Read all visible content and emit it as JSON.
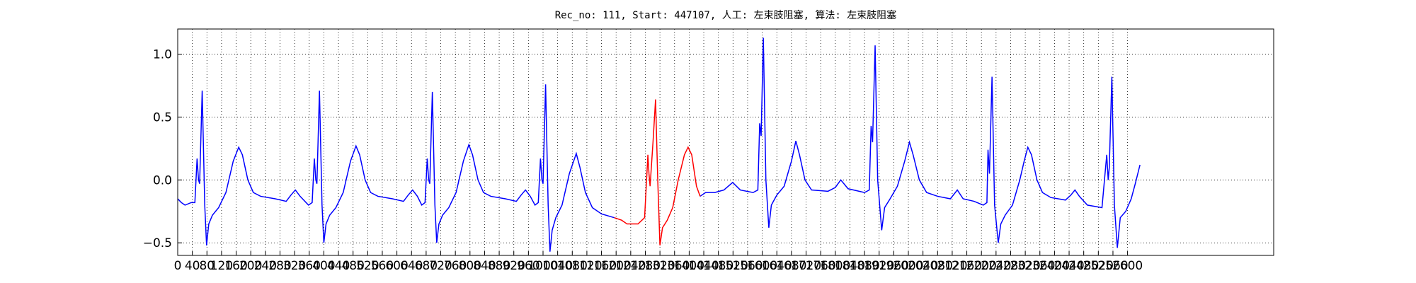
{
  "chart_data": {
    "type": "line",
    "title": "Rec_no: 111, Start: 447107, 人工: 左束肢阻塞, 算法: 左束肢阻塞",
    "xlim": [
      0,
      3000
    ],
    "xticks": [
      0,
      40,
      80,
      120,
      160,
      200,
      240,
      280,
      320,
      360,
      400,
      440,
      480,
      520,
      560,
      600,
      640,
      680,
      720,
      760,
      800,
      840,
      880,
      920,
      960,
      1000,
      1040,
      1080,
      1120,
      1160,
      1200,
      1240,
      1280,
      1320,
      1360,
      1400,
      1440,
      1480,
      1520,
      1560,
      1600,
      1640,
      1680,
      1720,
      1760,
      1800,
      1840,
      1880,
      1920,
      1960,
      2000,
      2040,
      2080,
      2120,
      2160,
      2200,
      2240,
      2280,
      2320,
      2360,
      2400,
      2440,
      2480,
      2520,
      2560,
      2600
    ],
    "ylim": [
      -0.6,
      1.2
    ],
    "yticks": [
      {
        "value": -0.5,
        "label": "−0.5"
      },
      {
        "value": 0,
        "label": "0.0"
      },
      0.5,
      {
        "value": 1,
        "label": "1.0"
      }
    ],
    "grid": true,
    "series": [
      {
        "color": "#0000ff",
        "x": [
          0,
          10,
          20,
          37,
          47,
          53,
          57,
          60,
          67,
          74,
          79,
          85,
          95,
          112,
          132,
          152,
          167,
          177,
          192,
          207,
          227,
          267,
          297,
          310,
          322,
          335,
          358,
          368,
          374,
          378,
          381,
          388,
          395,
          400,
          406,
          416,
          433,
          453,
          473,
          488,
          498,
          513,
          528,
          548,
          588,
          618,
          631,
          643,
          656,
          668,
          677,
          683,
          687,
          690,
          697,
          704,
          709,
          715,
          725,
          742,
          762,
          782,
          797,
          807,
          822,
          837,
          857,
          897,
          927,
          940,
          952,
          965,
          978,
          987,
          993,
          997,
          1000,
          1007,
          1014,
          1019,
          1025,
          1035,
          1052,
          1072,
          1091,
          1101,
          1116,
          1135,
          1160,
          1195,
          null,
          1430,
          1445,
          1470,
          1495,
          1519,
          1540,
          1575,
          1588,
          1593,
          1597,
          1603,
          1610,
          1618,
          1625,
          1640,
          1660,
          1680,
          1692,
          1702,
          1717,
          1735,
          1780,
          1800,
          1815,
          1835,
          1880,
          1893,
          1898,
          1902,
          1909,
          1916,
          1927,
          1935,
          1950,
          1970,
          1990,
          2003,
          2013,
          2030,
          2050,
          2080,
          2115,
          2134,
          2150,
          2180,
          2205,
          2215,
          2218,
          2222,
          2229,
          2236,
          2246,
          2253,
          2265,
          2285,
          2305,
          2317,
          2327,
          2337,
          2352,
          2367,
          2390,
          2430,
          2445,
          2456,
          2468,
          2490,
          2530,
          2543,
          2547,
          2550,
          2557,
          2564,
          2572,
          2580,
          2595,
          2610,
          2622,
          2634
        ],
        "values": [
          -0.15,
          -0.18,
          -0.2,
          -0.18,
          -0.18,
          0.17,
          0.0,
          -0.03,
          0.71,
          -0.2,
          -0.52,
          -0.35,
          -0.28,
          -0.22,
          -0.1,
          0.15,
          0.26,
          0.2,
          0.0,
          -0.1,
          -0.13,
          -0.15,
          -0.17,
          -0.12,
          -0.08,
          -0.13,
          -0.2,
          -0.18,
          0.17,
          0.0,
          -0.03,
          0.71,
          -0.2,
          -0.5,
          -0.35,
          -0.28,
          -0.22,
          -0.1,
          0.15,
          0.27,
          0.2,
          0.0,
          -0.1,
          -0.13,
          -0.15,
          -0.17,
          -0.12,
          -0.08,
          -0.13,
          -0.2,
          -0.18,
          0.17,
          0.0,
          -0.03,
          0.7,
          -0.2,
          -0.5,
          -0.35,
          -0.28,
          -0.22,
          -0.1,
          0.15,
          0.28,
          0.2,
          0.0,
          -0.1,
          -0.13,
          -0.15,
          -0.17,
          -0.12,
          -0.08,
          -0.13,
          -0.2,
          -0.18,
          0.17,
          0.0,
          -0.03,
          0.76,
          -0.2,
          -0.57,
          -0.4,
          -0.3,
          -0.2,
          0.05,
          0.21,
          0.1,
          -0.1,
          -0.22,
          -0.27,
          -0.3,
          null,
          -0.13,
          -0.1,
          -0.1,
          -0.08,
          -0.02,
          -0.08,
          -0.1,
          -0.08,
          0.45,
          0.35,
          1.13,
          0.0,
          -0.38,
          -0.2,
          -0.12,
          -0.05,
          0.15,
          0.31,
          0.2,
          0.0,
          -0.08,
          -0.09,
          -0.06,
          0.0,
          -0.07,
          -0.1,
          -0.08,
          0.43,
          0.3,
          1.07,
          0.0,
          -0.4,
          -0.22,
          -0.15,
          -0.05,
          0.15,
          0.3,
          0.2,
          0.0,
          -0.1,
          -0.13,
          -0.15,
          -0.08,
          -0.15,
          -0.17,
          -0.2,
          -0.18,
          0.24,
          0.05,
          0.82,
          -0.2,
          -0.5,
          -0.35,
          -0.28,
          -0.2,
          0.0,
          0.15,
          0.26,
          0.2,
          0.0,
          -0.1,
          -0.14,
          -0.16,
          -0.12,
          -0.08,
          -0.13,
          -0.2,
          -0.22,
          0.2,
          0.0,
          0.1,
          0.82,
          -0.2,
          -0.54,
          -0.3,
          -0.25,
          -0.15,
          -0.02,
          0.12
        ]
      },
      {
        "color": "#ff0000",
        "x": [
          1195,
          1215,
          1230,
          1260,
          1278,
          1287,
          1290,
          1293,
          1301,
          1308,
          1314,
          1320,
          1327,
          1340,
          1355,
          1370,
          1387,
          1397,
          1407,
          1420,
          1430
        ],
        "values": [
          -0.3,
          -0.32,
          -0.35,
          -0.35,
          -0.3,
          0.2,
          0.05,
          -0.05,
          0.3,
          0.64,
          0.0,
          -0.52,
          -0.38,
          -0.32,
          -0.22,
          0.0,
          0.2,
          0.26,
          0.2,
          -0.05,
          -0.13
        ]
      }
    ]
  }
}
